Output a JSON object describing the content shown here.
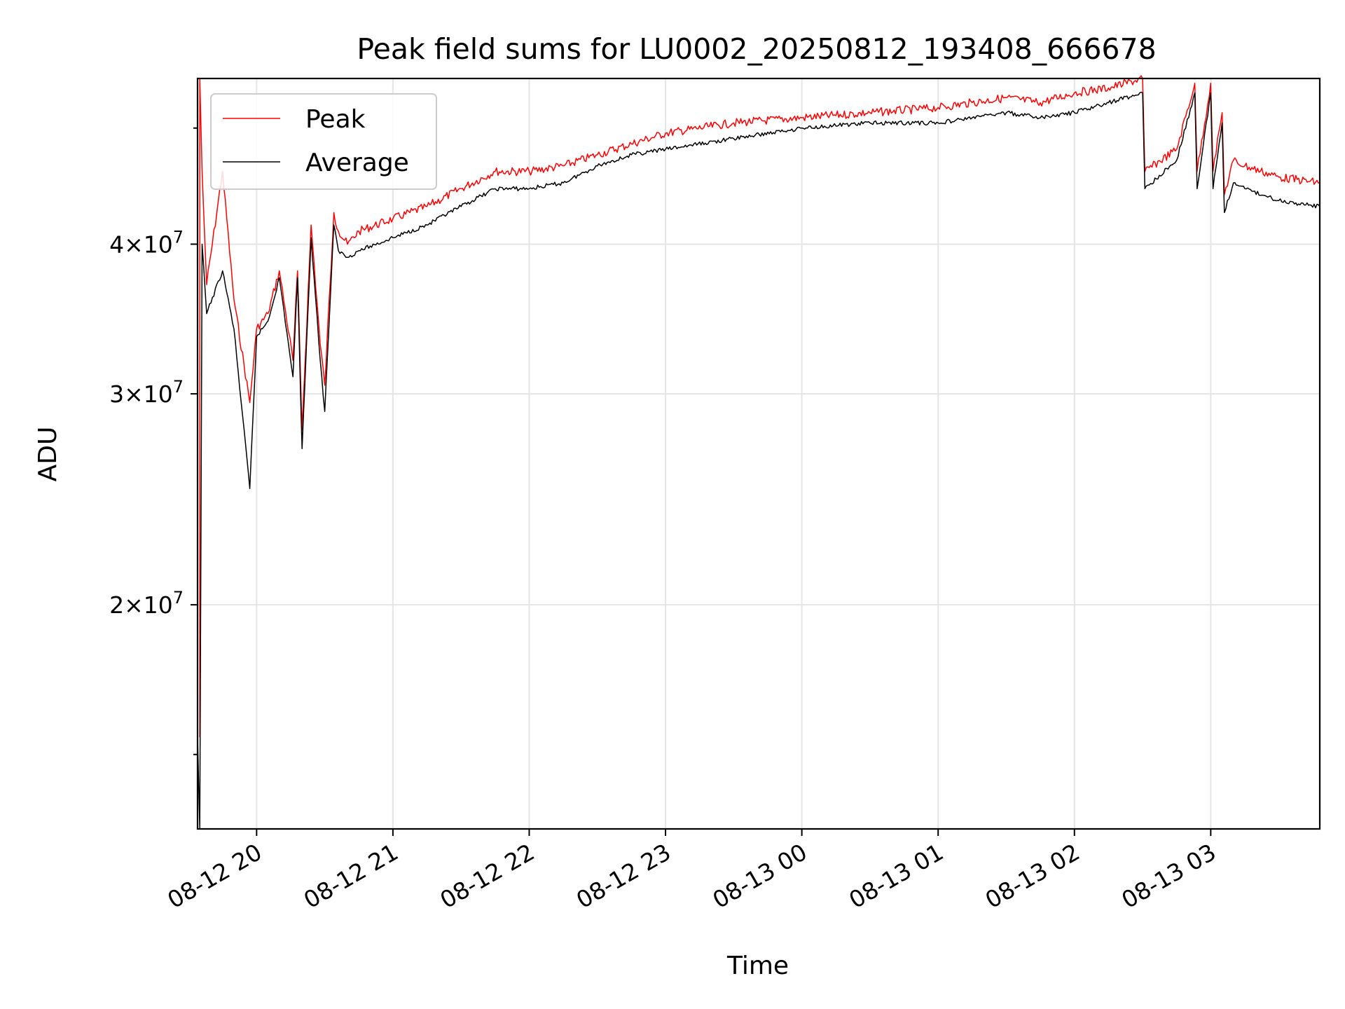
{
  "chart_data": {
    "type": "line",
    "title": "Peak field sums for LU0002_20250812_193408_666678",
    "xlabel": "Time",
    "ylabel": "ADU",
    "yscale": "log",
    "grid": true,
    "legend_position": "top-left",
    "xlim": [
      "2025-08-12 19:34",
      "2025-08-13 03:48"
    ],
    "ylim": [
      13000000,
      55000000
    ],
    "x_ticks": [
      {
        "t": "2025-08-12 20:00",
        "label": "08-12 20"
      },
      {
        "t": "2025-08-12 21:00",
        "label": "08-12 21"
      },
      {
        "t": "2025-08-12 22:00",
        "label": "08-12 22"
      },
      {
        "t": "2025-08-12 23:00",
        "label": "08-12 23"
      },
      {
        "t": "2025-08-13 00:00",
        "label": "08-13 00"
      },
      {
        "t": "2025-08-13 01:00",
        "label": "08-13 01"
      },
      {
        "t": "2025-08-13 02:00",
        "label": "08-13 02"
      },
      {
        "t": "2025-08-13 03:00",
        "label": "08-13 03"
      }
    ],
    "y_ticks": [
      {
        "value": 20000000,
        "mantissa": "2",
        "base": "10",
        "exp": "7"
      },
      {
        "value": 30000000,
        "mantissa": "3",
        "base": "10",
        "exp": "7"
      },
      {
        "value": 40000000,
        "mantissa": "4",
        "base": "10",
        "exp": "7"
      }
    ],
    "series": [
      {
        "name": "Peak",
        "color": "#ff0000",
        "x": [
          "2025-08-12 19:35",
          "2025-08-12 19:35",
          "2025-08-12 19:36",
          "2025-08-12 19:38",
          "2025-08-12 19:45",
          "2025-08-12 19:50",
          "2025-08-12 19:57",
          "2025-08-12 20:00",
          "2025-08-12 20:05",
          "2025-08-12 20:10",
          "2025-08-12 20:16",
          "2025-08-12 20:18",
          "2025-08-12 20:20",
          "2025-08-12 20:24",
          "2025-08-12 20:28",
          "2025-08-12 20:30",
          "2025-08-12 20:34",
          "2025-08-12 20:36",
          "2025-08-12 20:40",
          "2025-08-12 20:45",
          "2025-08-12 21:00",
          "2025-08-12 21:15",
          "2025-08-12 21:30",
          "2025-08-12 21:45",
          "2025-08-12 22:00",
          "2025-08-12 22:15",
          "2025-08-12 22:30",
          "2025-08-12 22:45",
          "2025-08-12 23:00",
          "2025-08-12 23:30",
          "2025-08-13 00:00",
          "2025-08-13 00:30",
          "2025-08-13 01:00",
          "2025-08-13 01:15",
          "2025-08-13 01:30",
          "2025-08-13 01:45",
          "2025-08-13 02:00",
          "2025-08-13 02:15",
          "2025-08-13 02:30",
          "2025-08-13 02:31",
          "2025-08-13 02:45",
          "2025-08-13 02:53",
          "2025-08-13 02:54",
          "2025-08-13 03:00",
          "2025-08-13 03:01",
          "2025-08-13 03:05",
          "2025-08-13 03:06",
          "2025-08-13 03:10",
          "2025-08-13 03:15",
          "2025-08-13 03:30",
          "2025-08-13 03:48"
        ],
        "y": [
          15500000,
          55000000,
          46000000,
          37000000,
          46000000,
          36000000,
          29500000,
          34000000,
          35000000,
          38000000,
          32000000,
          38000000,
          28000000,
          41500000,
          33000000,
          30500000,
          42500000,
          41000000,
          40000000,
          41000000,
          42000000,
          43000000,
          44500000,
          46000000,
          46000000,
          46500000,
          47500000,
          48500000,
          49500000,
          50500000,
          51000000,
          51500000,
          52000000,
          52500000,
          53000000,
          52500000,
          53500000,
          54000000,
          55000000,
          46000000,
          48000000,
          54500000,
          46000000,
          54500000,
          46000000,
          51500000,
          44000000,
          47000000,
          46500000,
          45500000,
          45000000
        ]
      },
      {
        "name": "Average",
        "color": "#000000",
        "x": [
          "2025-08-12 19:34",
          "2025-08-12 19:35",
          "2025-08-12 19:36",
          "2025-08-12 19:38",
          "2025-08-12 19:45",
          "2025-08-12 19:50",
          "2025-08-12 19:57",
          "2025-08-12 20:00",
          "2025-08-12 20:05",
          "2025-08-12 20:10",
          "2025-08-12 20:16",
          "2025-08-12 20:18",
          "2025-08-12 20:20",
          "2025-08-12 20:24",
          "2025-08-12 20:28",
          "2025-08-12 20:30",
          "2025-08-12 20:34",
          "2025-08-12 20:36",
          "2025-08-12 20:40",
          "2025-08-12 20:45",
          "2025-08-12 21:00",
          "2025-08-12 21:15",
          "2025-08-12 21:30",
          "2025-08-12 21:45",
          "2025-08-12 22:00",
          "2025-08-12 22:15",
          "2025-08-12 22:30",
          "2025-08-12 22:45",
          "2025-08-12 23:00",
          "2025-08-12 23:30",
          "2025-08-13 00:00",
          "2025-08-13 00:30",
          "2025-08-13 01:00",
          "2025-08-13 01:15",
          "2025-08-13 01:30",
          "2025-08-13 01:45",
          "2025-08-13 02:00",
          "2025-08-13 02:15",
          "2025-08-13 02:30",
          "2025-08-13 02:31",
          "2025-08-13 02:45",
          "2025-08-13 02:53",
          "2025-08-13 02:54",
          "2025-08-13 03:00",
          "2025-08-13 03:01",
          "2025-08-13 03:05",
          "2025-08-13 03:06",
          "2025-08-13 03:10",
          "2025-08-13 03:15",
          "2025-08-13 03:30",
          "2025-08-13 03:48"
        ],
        "y": [
          15500000,
          13000000,
          40000000,
          35000000,
          38000000,
          34000000,
          25000000,
          33500000,
          34500000,
          37500000,
          31000000,
          37500000,
          27000000,
          40500000,
          32000000,
          29000000,
          41500000,
          39500000,
          39000000,
          39500000,
          40500000,
          41500000,
          43000000,
          44500000,
          44500000,
          45000000,
          46500000,
          47500000,
          48000000,
          49000000,
          50000000,
          50500000,
          50500000,
          51000000,
          51500000,
          51000000,
          51500000,
          52500000,
          53500000,
          44500000,
          47000000,
          53500000,
          44500000,
          53500000,
          44500000,
          50500000,
          42500000,
          45000000,
          44500000,
          43500000,
          43000000
        ]
      }
    ]
  }
}
